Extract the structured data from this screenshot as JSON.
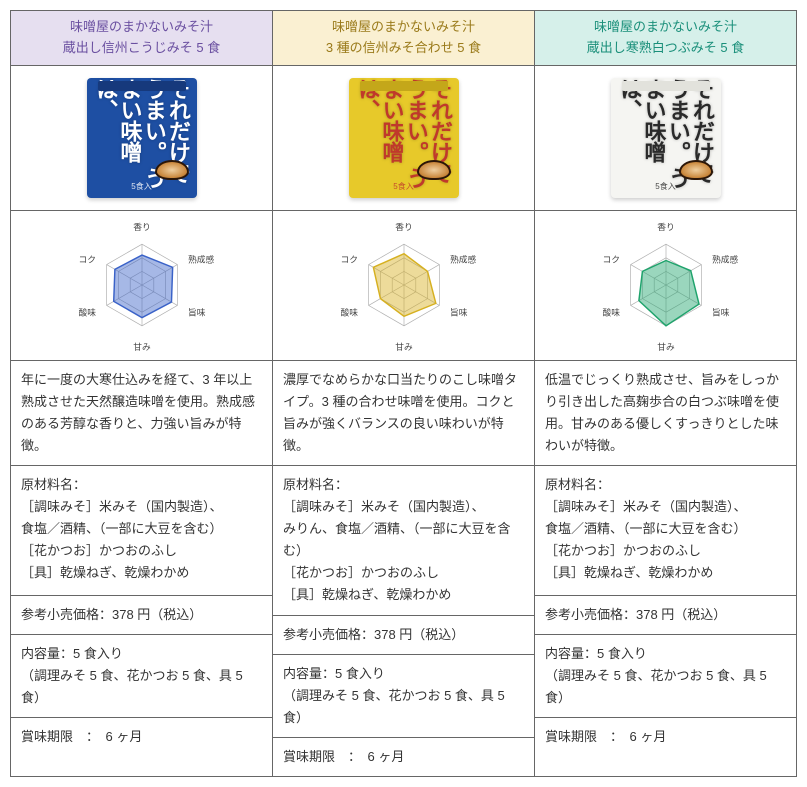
{
  "columns": [
    {
      "header_bg": "#e6dff0",
      "header_color": "#6a4fa0",
      "title_line1": "味噌屋のまかないみそ汁",
      "title_line2": "蔵出し信州こうじみそ 5 食",
      "pkg_bg": "#1e4fa3",
      "pkg_top": "#16397c",
      "pkg_text_color": "#ffffff",
      "pkg_main1": "うまい味噌は、",
      "pkg_main2": "それだけでうまい。",
      "pkg_sub": "5食入",
      "radar_color": "#3a62c8",
      "radar_values": [
        2.2,
        2.6,
        2.5,
        2.4,
        2.4,
        2.3
      ],
      "description": "年に一度の大寒仕込みを経て、3 年以上熟成させた天然醸造味噌を使用。熟成感のある芳醇な香りと、力強い旨みが特徴。",
      "ing_title": "原材料名：",
      "ing_1": "［調味みそ］米みそ（国内製造）、",
      "ing_2": "食塩／酒精、（一部に大豆を含む）",
      "ing_3": "［花かつお］かつおのふし",
      "ing_4": "［具］乾燥ねぎ、乾燥わかめ",
      "price": "参考小売価格：378 円（税込）",
      "contents_title": "内容量：5 食入り",
      "contents_detail": "（調理みそ 5 食、花かつお 5 食、具 5 食）",
      "expiry": "賞味期限　：　6 ヶ月"
    },
    {
      "header_bg": "#faf0d2",
      "header_color": "#9a7a1a",
      "title_line1": "味噌屋のまかないみそ汁",
      "title_line2": "3 種の信州みそ合わせ 5 食",
      "pkg_bg": "#e7c92a",
      "pkg_top": "#c4a71a",
      "pkg_text_color": "#c0392b",
      "pkg_main1": "うまい味噌は、",
      "pkg_main2": "それだけでうまい。",
      "pkg_sub": "5食入",
      "radar_color": "#d6b020",
      "radar_values": [
        2.3,
        2.0,
        2.7,
        2.3,
        2.0,
        2.6
      ],
      "description": "濃厚でなめらかな口当たりのこし味噌タイプ。3 種の合わせ味噌を使用。コクと旨みが強くバランスの良い味わいが特徴。",
      "ing_title": "原材料名：",
      "ing_1": "［調味みそ］米みそ（国内製造）、",
      "ing_2": "みりん、食塩／酒精、（一部に大豆を含む）",
      "ing_3": "［花かつお］かつおのふし",
      "ing_4": "［具］乾燥ねぎ、乾燥わかめ",
      "price": "参考小売価格：378 円（税込）",
      "contents_title": "内容量：5 食入り",
      "contents_detail": "（調理みそ 5 食、花かつお 5 食、具 5 食）",
      "expiry": "賞味期限　：　6 ヶ月"
    },
    {
      "header_bg": "#d6f0ea",
      "header_color": "#1a8f7a",
      "title_line1": "味噌屋のまかないみそ汁",
      "title_line2": "蔵出し寒熟白つぶみそ 5 食",
      "pkg_bg": "#f5f5f2",
      "pkg_top": "#e2e2dc",
      "pkg_text_color": "#2a2a2a",
      "pkg_main1": "うまい味噌は、",
      "pkg_main2": "それだけでうまい。",
      "pkg_sub": "5食入",
      "radar_color": "#1fa36c",
      "radar_values": [
        1.8,
        2.1,
        2.8,
        3.0,
        2.3,
        2.0
      ],
      "description": "低温でじっくり熟成させ、旨みをしっかり引き出した高麹歩合の白つぶ味噌を使用。甘みのある優しくすっきりとした味わいが特徴。",
      "ing_title": "原材料名：",
      "ing_1": "［調味みそ］米みそ（国内製造）、",
      "ing_2": "食塩／酒精、（一部に大豆を含む）",
      "ing_3": "［花かつお］かつおのふし",
      "ing_4": "［具］乾燥ねぎ、乾燥わかめ",
      "price": "参考小売価格：378 円（税込）",
      "contents_title": "内容量：5 食入り",
      "contents_detail": "（調理みそ 5 食、花かつお 5 食、具 5 食）",
      "expiry": "賞味期限　：　6 ヶ月"
    }
  ],
  "radar": {
    "labels": [
      "香り",
      "熟成感",
      "旨味",
      "甘み",
      "酸味",
      "コク"
    ],
    "max": 3,
    "rings": 3,
    "grid_color": "#b0b0b0"
  }
}
